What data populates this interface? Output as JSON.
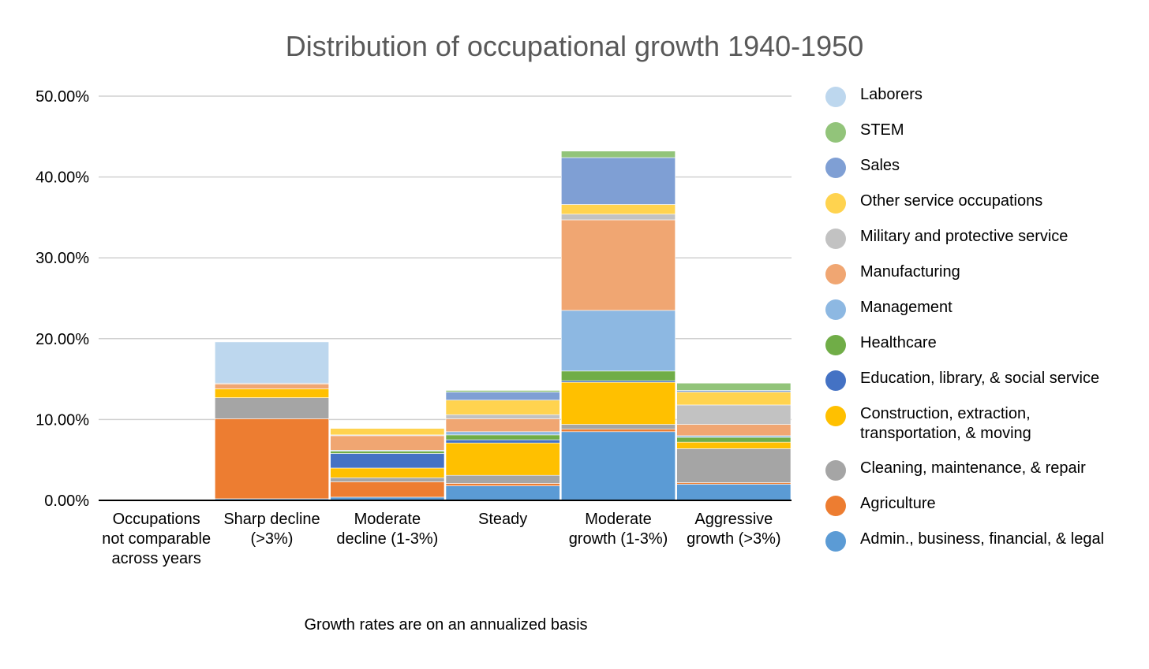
{
  "chart_data": {
    "type": "bar",
    "stacked": true,
    "title": "Distribution of occupational growth 1940-1950",
    "xlabel": "Growth rates are on an annualized basis",
    "ylabel": "",
    "ylim": [
      0,
      50
    ],
    "yticks": [
      "0.00%",
      "10.00%",
      "20.00%",
      "30.00%",
      "40.00%",
      "50.00%"
    ],
    "grid": true,
    "legend_position": "right",
    "categories": [
      "Occupations not comparable across years",
      "Sharp decline (>3%)",
      "Moderate decline (1-3%)",
      "Steady",
      "Moderate growth (1-3%)",
      "Aggressive growth (>3%)"
    ],
    "series": [
      {
        "name": "Admin., business, financial, & legal",
        "color": "#5B9BD5",
        "values": [
          0,
          0.2,
          0.4,
          1.8,
          8.5,
          2.0
        ]
      },
      {
        "name": "Agriculture",
        "color": "#ED7D31",
        "values": [
          0,
          9.9,
          1.9,
          0.3,
          0.3,
          0.2
        ]
      },
      {
        "name": "Cleaning, maintenance, & repair",
        "color": "#A5A5A5",
        "values": [
          0,
          2.6,
          0.5,
          1.0,
          0.6,
          4.2
        ]
      },
      {
        "name": "Construction, extraction, transportation, & moving",
        "color": "#FFC000",
        "values": [
          0,
          1.1,
          1.2,
          4.0,
          5.2,
          0.8
        ]
      },
      {
        "name": "Education, library, & social service",
        "color": "#4472C4",
        "values": [
          0,
          0,
          1.8,
          0.4,
          0.2,
          0
        ]
      },
      {
        "name": "Healthcare",
        "color": "#70AD47",
        "values": [
          0,
          0,
          0.3,
          0.6,
          1.2,
          0.6
        ]
      },
      {
        "name": "Management",
        "color": "#8DB8E2",
        "values": [
          0,
          0,
          0.1,
          0.4,
          7.5,
          0.2
        ]
      },
      {
        "name": "Manufacturing",
        "color": "#F0A672",
        "values": [
          0,
          0.6,
          1.8,
          1.6,
          11.2,
          1.4
        ]
      },
      {
        "name": "Military and protective service",
        "color": "#C2C2C2",
        "values": [
          0,
          0.1,
          0.1,
          0.5,
          0.7,
          2.4
        ]
      },
      {
        "name": "Other service occupations",
        "color": "#FFD34F",
        "values": [
          0,
          0,
          0.8,
          1.8,
          1.2,
          1.6
        ]
      },
      {
        "name": "Sales",
        "color": "#7F9FD4",
        "values": [
          0,
          0,
          0,
          1.0,
          5.8,
          0.2
        ]
      },
      {
        "name": "STEM",
        "color": "#92C47A",
        "values": [
          0,
          0,
          0,
          0.2,
          0.8,
          0.9
        ]
      },
      {
        "name": "Laborers",
        "color": "#BDD7EE",
        "values": [
          0,
          5.1,
          0,
          0,
          0,
          0
        ]
      }
    ],
    "legend_order": [
      "Laborers",
      "STEM",
      "Sales",
      "Other service occupations",
      "Military and protective service",
      "Manufacturing",
      "Management",
      "Healthcare",
      "Education, library, & social service",
      "Construction, extraction, transportation, & moving",
      "Cleaning, maintenance, & repair",
      "Agriculture",
      "Admin., business, financial, & legal"
    ]
  }
}
